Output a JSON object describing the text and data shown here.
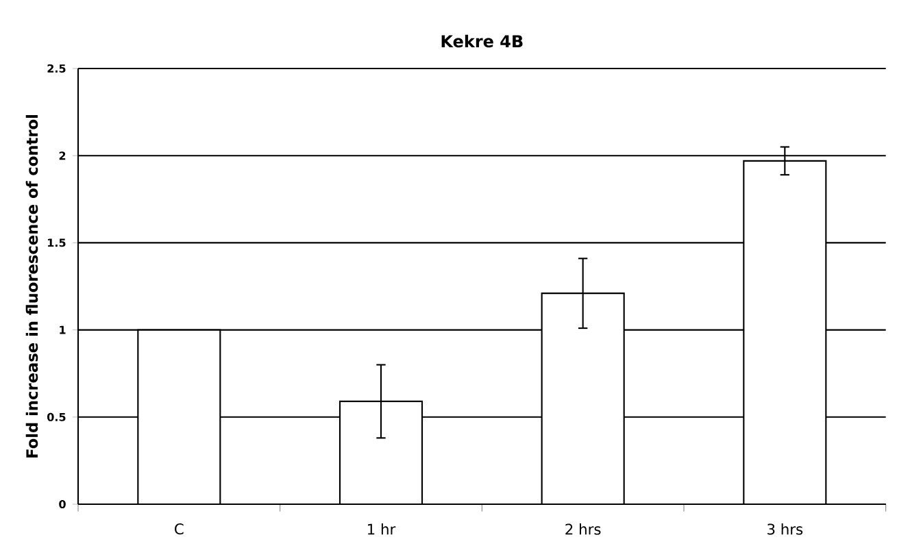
{
  "chart_data": {
    "type": "bar",
    "title": "Kekre 4B",
    "ylabel": "Fold increase in fluorescence of control",
    "categories": [
      "C",
      "1 hr",
      "2 hrs",
      "3 hrs"
    ],
    "values": [
      1,
      0.59,
      1.21,
      1.97
    ],
    "errors": [
      null,
      0.21,
      0.2,
      0.08
    ],
    "color": "#ffffff",
    "ylim": [
      0,
      2.5
    ],
    "yticks": [
      0,
      0.5,
      1,
      1.5,
      2,
      2.5
    ],
    "grid": "y"
  }
}
